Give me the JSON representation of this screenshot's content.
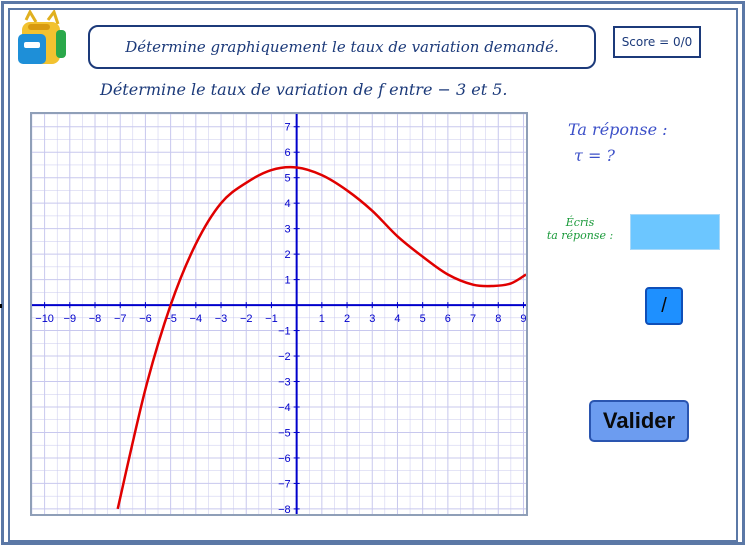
{
  "header": {
    "instruction": "Détermine graphiquement le taux de variation demandé.",
    "score": "Score = 0/0"
  },
  "question": {
    "text": "Détermine le taux de variation de f entre  − 3 et 5."
  },
  "answer_panel": {
    "heading": "Ta réponse :",
    "tau_line": "τ = ?",
    "write_label_line1": "Écris",
    "write_label_line2": "ta réponse :",
    "input_value": "",
    "input_placeholder": "",
    "slash_button_label": "/",
    "validate_button_label": "Valider"
  },
  "colors": {
    "border": "#5b78a6",
    "text_dark_blue": "#1c3a7a",
    "answer_text": "#3c50c8",
    "label_green": "#1a9a3a",
    "input_bg": "#6cc6ff",
    "slash_button_bg": "#1e90ff",
    "validate_button_bg": "#6c9cf0",
    "curve": "#e00000",
    "axes": "#0000cc",
    "grid": "#c8c8ee"
  },
  "icons": {
    "logo": "school-backpack-icon"
  },
  "chart_data": {
    "type": "line",
    "title": "",
    "xlabel": "",
    "ylabel": "",
    "xlim": [
      -10.5,
      9.1
    ],
    "ylim": [
      -8.2,
      7.5
    ],
    "x_ticks": [
      "−10",
      "−9",
      "−8",
      "−7",
      "−6",
      "−5",
      "−4",
      "−3",
      "−2",
      "−1",
      "1",
      "2",
      "3",
      "4",
      "5",
      "6",
      "7",
      "8",
      "9"
    ],
    "y_ticks": [
      "7",
      "6",
      "5",
      "4",
      "3",
      "2",
      "1",
      "−1",
      "−2",
      "−3",
      "−4",
      "−5",
      "−6",
      "−7",
      "−8"
    ],
    "grid": true,
    "series": [
      {
        "name": "",
        "x": [
          -7.1,
          -6,
          -5,
          -4,
          -3,
          -2,
          -1,
          0,
          1,
          2,
          3,
          4,
          5,
          6,
          7,
          7.8,
          8.5,
          9.1
        ],
        "y": [
          -8,
          -3.3,
          0,
          2.4,
          4.0,
          4.8,
          5.3,
          5.4,
          5.1,
          4.5,
          3.7,
          2.7,
          1.9,
          1.2,
          0.8,
          0.75,
          0.85,
          1.2
        ]
      }
    ]
  }
}
